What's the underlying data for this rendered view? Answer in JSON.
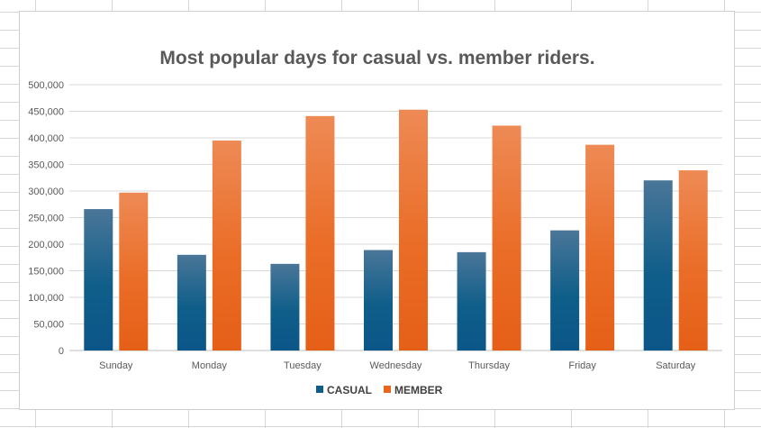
{
  "chart_data": {
    "type": "bar",
    "title": "Most popular days for casual vs. member riders.",
    "categories": [
      "Sunday",
      "Monday",
      "Tuesday",
      "Wednesday",
      "Thursday",
      "Friday",
      "Saturday"
    ],
    "series": [
      {
        "name": "CASUAL",
        "values": [
          266000,
          180000,
          163000,
          189000,
          185000,
          226000,
          320000
        ],
        "color": "#0f5e8a"
      },
      {
        "name": "MEMBER",
        "values": [
          297000,
          395000,
          441000,
          453000,
          423000,
          387000,
          339000
        ],
        "color": "#e8661e"
      }
    ],
    "ylim": [
      0,
      500000
    ],
    "yticks": [
      "0",
      "50,000",
      "100,000",
      "150,000",
      "200,000",
      "250,000",
      "300,000",
      "350,000",
      "400,000",
      "450,000",
      "500,000"
    ],
    "grid": true,
    "legend": "bottom"
  }
}
